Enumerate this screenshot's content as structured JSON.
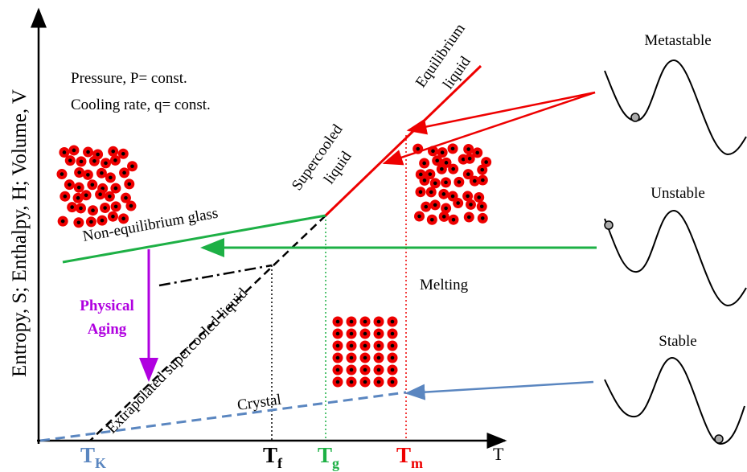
{
  "axes": {
    "y_label": "Entropy, S; Enthalpy, H; Volume, V",
    "x_label": "T"
  },
  "conditions": [
    "Pressure, P= const.",
    "Cooling rate, q= const."
  ],
  "curves": {
    "equilibrium_liquid": [
      "Equilibrium",
      "liquid"
    ],
    "supercooled_liquid": [
      "Supercooled",
      "liquid"
    ],
    "glass": "Non-equilibrium glass",
    "extrapolated": "Extrapolated supercooled liquid",
    "crystal": "Crystal"
  },
  "physical_aging": [
    "Physical",
    "Aging"
  ],
  "melting": "Melting",
  "temperatures": [
    {
      "symbol": "T",
      "subscript": "K"
    },
    {
      "symbol": "T",
      "subscript": "f"
    },
    {
      "symbol": "T",
      "subscript": "g"
    },
    {
      "symbol": "T",
      "subscript": "m"
    }
  ],
  "states": [
    "Metastable",
    "Unstable",
    "Stable"
  ]
}
